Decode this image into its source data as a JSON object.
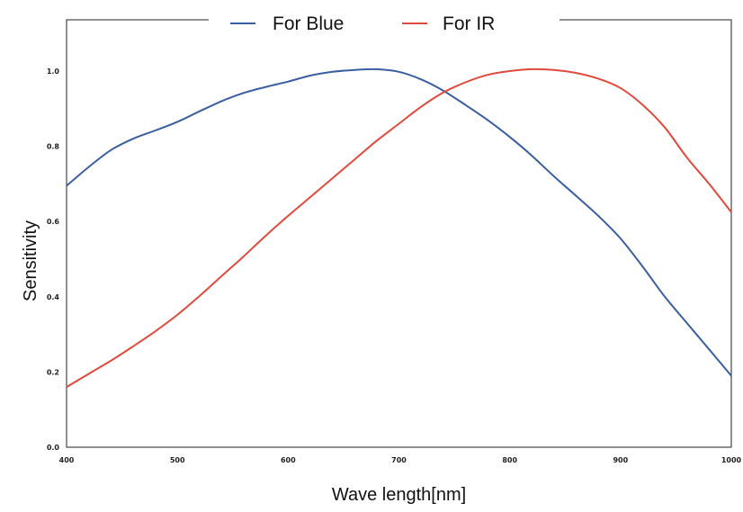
{
  "chart_data": {
    "type": "line",
    "title": "",
    "xlabel": "Wave length[nm]",
    "ylabel": "Sensitivity",
    "xlim": [
      400,
      1000
    ],
    "ylim": [
      0,
      1.0
    ],
    "x_ticks": [
      "400",
      "500",
      "600",
      "700",
      "800",
      "900",
      "1000"
    ],
    "y_ticks": [
      "0.0",
      "0.2",
      "0.4",
      "0.6",
      "0.8",
      "1.0"
    ],
    "grid": false,
    "legend_position": "top-center",
    "series": [
      {
        "name": "For Blue",
        "color": "#3a5fa0",
        "x": [
          400,
          420,
          440,
          460,
          480,
          500,
          520,
          540,
          560,
          580,
          600,
          620,
          640,
          660,
          680,
          700,
          720,
          740,
          760,
          780,
          800,
          820,
          840,
          860,
          880,
          900,
          920,
          940,
          960,
          980,
          1000
        ],
        "y": [
          0.695,
          0.745,
          0.79,
          0.82,
          0.842,
          0.865,
          0.893,
          0.92,
          0.942,
          0.958,
          0.972,
          0.988,
          0.998,
          1.003,
          1.005,
          0.998,
          0.978,
          0.948,
          0.91,
          0.87,
          0.825,
          0.775,
          0.72,
          0.668,
          0.615,
          0.555,
          0.48,
          0.4,
          0.33,
          0.26,
          0.19
        ]
      },
      {
        "name": "For IR",
        "color": "#e04a3c",
        "x": [
          400,
          420,
          440,
          460,
          480,
          500,
          520,
          540,
          560,
          580,
          600,
          620,
          640,
          660,
          680,
          700,
          720,
          740,
          760,
          780,
          800,
          820,
          840,
          860,
          880,
          900,
          920,
          940,
          960,
          980,
          1000
        ],
        "y": [
          0.16,
          0.195,
          0.23,
          0.268,
          0.308,
          0.352,
          0.402,
          0.455,
          0.508,
          0.563,
          0.615,
          0.665,
          0.715,
          0.765,
          0.815,
          0.86,
          0.905,
          0.943,
          0.97,
          0.99,
          1.0,
          1.005,
          1.003,
          0.995,
          0.98,
          0.955,
          0.91,
          0.85,
          0.77,
          0.7,
          0.625
        ]
      }
    ]
  }
}
